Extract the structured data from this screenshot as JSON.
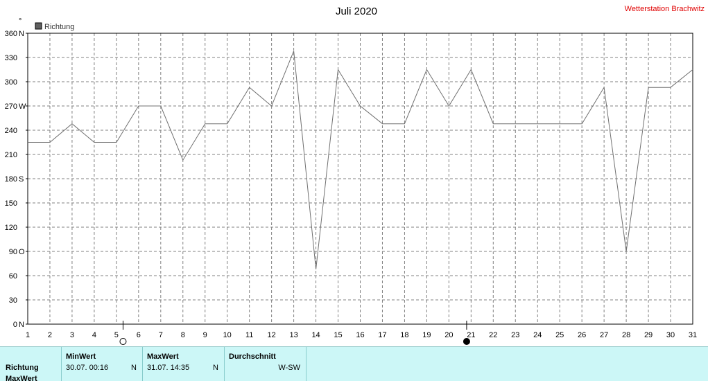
{
  "chart_data": {
    "type": "line",
    "title": "Juli 2020",
    "station": "Wetterstation Brachwitz",
    "unit_mark": "°",
    "legend": [
      {
        "name": "Richtung",
        "color": "#606060"
      }
    ],
    "ylim": [
      0,
      360
    ],
    "yticks": [
      {
        "value": 0,
        "label": "0",
        "dir": "N"
      },
      {
        "value": 30,
        "label": "30",
        "dir": ""
      },
      {
        "value": 60,
        "label": "60",
        "dir": ""
      },
      {
        "value": 90,
        "label": "90",
        "dir": "O"
      },
      {
        "value": 120,
        "label": "120",
        "dir": ""
      },
      {
        "value": 150,
        "label": "150",
        "dir": ""
      },
      {
        "value": 180,
        "label": "180",
        "dir": "S"
      },
      {
        "value": 210,
        "label": "210",
        "dir": ""
      },
      {
        "value": 240,
        "label": "240",
        "dir": ""
      },
      {
        "value": 270,
        "label": "270",
        "dir": "W"
      },
      {
        "value": 300,
        "label": "300",
        "dir": ""
      },
      {
        "value": 330,
        "label": "330",
        "dir": ""
      },
      {
        "value": 360,
        "label": "360",
        "dir": "N"
      }
    ],
    "xlim": [
      1,
      31
    ],
    "x": [
      1,
      2,
      3,
      4,
      5,
      6,
      7,
      8,
      9,
      10,
      11,
      12,
      13,
      14,
      15,
      16,
      17,
      18,
      19,
      20,
      21,
      22,
      23,
      24,
      25,
      26,
      27,
      28,
      29,
      30,
      31
    ],
    "series": [
      {
        "name": "Richtung",
        "values": [
          225,
          225,
          248,
          225,
          225,
          270,
          270,
          203,
          248,
          248,
          293,
          270,
          338,
          68,
          315,
          270,
          248,
          248,
          315,
          270,
          315,
          248,
          248,
          248,
          248,
          248,
          293,
          90,
          293,
          293,
          315
        ]
      }
    ],
    "moon_phases": [
      {
        "day": 5.3,
        "phase": "full"
      },
      {
        "day": 20.8,
        "phase": "new"
      }
    ]
  },
  "stats": {
    "row_labels": [
      "Richtung",
      "MaxWert"
    ],
    "min_header": "MinWert",
    "min_value": "30.07.  00:16",
    "min_dir": "N",
    "max_header": "MaxWert",
    "max_value": "31.07.  14:35",
    "max_dir": "N",
    "avg_header": "Durchschnitt",
    "avg_value": "W-SW"
  }
}
